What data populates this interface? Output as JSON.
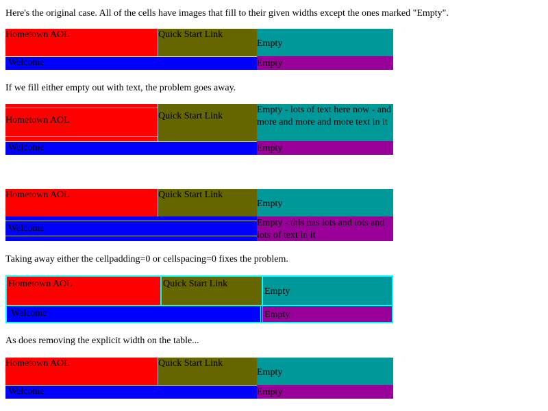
{
  "paragraphs": {
    "p1": "Here's the original case. All of the cells have images that fill to their given widths except the ones marked \"Empty\".",
    "p2": "If we fill either empty out with text, the problem goes away.",
    "p3": "Taking away either the cellpadding=0 or cellspacing=0 fixes the problem.",
    "p4": "As does removing the explicit width on the table..."
  },
  "tables": [
    {
      "c1": "Hometown AOL",
      "c2": "Quick Start Link",
      "c3": "Empty",
      "c4": "Welcome",
      "c5": "Empty"
    },
    {
      "c1": "Hometown AOL",
      "c2": "Quick Start Link",
      "c3": "Empty - lots of text here now - and more and more and more text in it",
      "c4": "Welcome",
      "c5": "Empty"
    },
    {
      "c1": "Hometown AOL",
      "c2": "Quick Start Link",
      "c3": "Empty",
      "c4": "Welcome",
      "c5": "Empty - this has lots and lots and lots of text in it"
    },
    {
      "c1": "Hometown AOL",
      "c2": "Quick Start Link",
      "c3": "Empty",
      "c4": "Welcome",
      "c5": "Empty"
    },
    {
      "c1": "Hometown AOL",
      "c2": "Quick Start Link",
      "c3": "Empty",
      "c4": "Welcome",
      "c5": "Empty"
    }
  ],
  "colors": {
    "red": "#ff0000",
    "olive": "#666600",
    "teal": "#009999",
    "blue": "#0000ff",
    "purple": "#990099",
    "cyan_border": "#00ffff"
  }
}
